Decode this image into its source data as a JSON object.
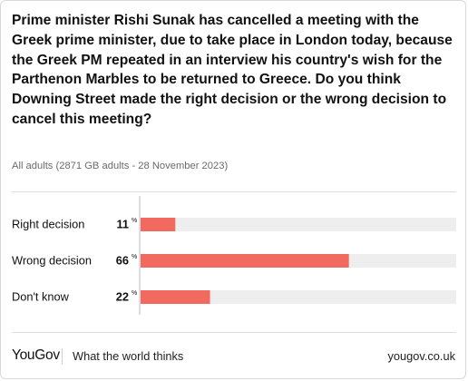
{
  "question": "Prime minister Rishi Sunak has cancelled a meeting with the Greek prime minister, due to take place in London today, because the Greek PM repeated in an interview his country's wish for the Parthenon Marbles to be returned to Greece. Do you think Downing Street made the right decision or the wrong decision to cancel this meeting?",
  "sample": "All adults (2871 GB adults - 28 November 2023)",
  "chart_data": {
    "type": "bar",
    "orientation": "horizontal",
    "categories": [
      "Right decision",
      "Wrong decision",
      "Don't know"
    ],
    "values": [
      11,
      66,
      22
    ],
    "unit": "%",
    "xlim": [
      0,
      100
    ],
    "bar_color": "#f26a5f",
    "track_color": "#eeeeee",
    "grid": false
  },
  "footer": {
    "logo": "YouGov",
    "tagline": "What the world thinks",
    "url": "yougov.co.uk"
  }
}
